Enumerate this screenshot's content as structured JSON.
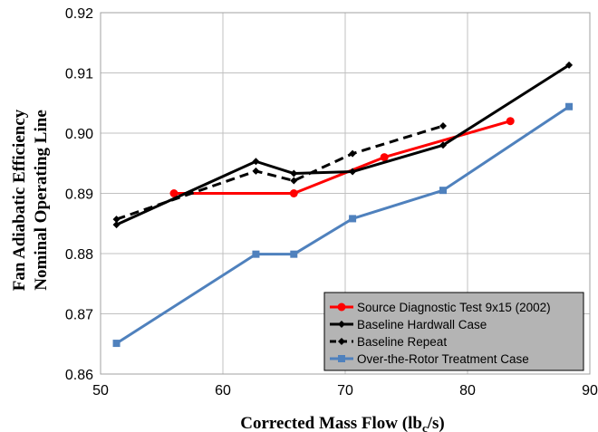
{
  "chart_data": {
    "type": "line",
    "xlabel": "Corrected Mass Flow (lb",
    "xlabel_sub": "c",
    "xlabel_end": "/s)",
    "ylabel": [
      "Fan Adiabatic Efficiency",
      "Nominal Operating Line"
    ],
    "xlim": [
      50,
      90
    ],
    "ylim": [
      0.86,
      0.92
    ],
    "x_ticks": [
      "50",
      "60",
      "70",
      "80",
      "90"
    ],
    "y_ticks": [
      "0.86",
      "0.87",
      "0.88",
      "0.89",
      "0.90",
      "0.91",
      "0.92"
    ],
    "grid": true,
    "legend_position": "bottom-right",
    "series": [
      {
        "name": "Source Diagnostic Test 9x15 (2002)",
        "color": "#ff0000",
        "style": "solid",
        "marker": "circle",
        "points": [
          [
            56.0,
            0.89
          ],
          [
            65.8,
            0.89
          ],
          [
            73.2,
            0.896
          ],
          [
            83.5,
            0.902
          ]
        ]
      },
      {
        "name": "Baseline Hardwall Case",
        "color": "#000000",
        "style": "solid",
        "marker": "diamond",
        "points": [
          [
            51.3,
            0.8848
          ],
          [
            62.7,
            0.8953
          ],
          [
            65.8,
            0.8933
          ],
          [
            70.6,
            0.8936
          ],
          [
            78.0,
            0.898
          ],
          [
            88.3,
            0.9113
          ]
        ]
      },
      {
        "name": "Baseline Repeat",
        "color": "#000000",
        "style": "dashed",
        "marker": "diamond",
        "points": [
          [
            51.3,
            0.8857
          ],
          [
            62.7,
            0.8937
          ],
          [
            65.8,
            0.8921
          ],
          [
            70.6,
            0.8966
          ],
          [
            78.0,
            0.9012
          ]
        ]
      },
      {
        "name": "Over-the-Rotor Treatment Case",
        "color": "#4f81bd",
        "style": "solid",
        "marker": "square",
        "points": [
          [
            51.3,
            0.8651
          ],
          [
            62.7,
            0.8799
          ],
          [
            65.8,
            0.8799
          ],
          [
            70.6,
            0.8858
          ],
          [
            78.0,
            0.8905
          ],
          [
            88.3,
            0.9044
          ]
        ]
      }
    ]
  }
}
